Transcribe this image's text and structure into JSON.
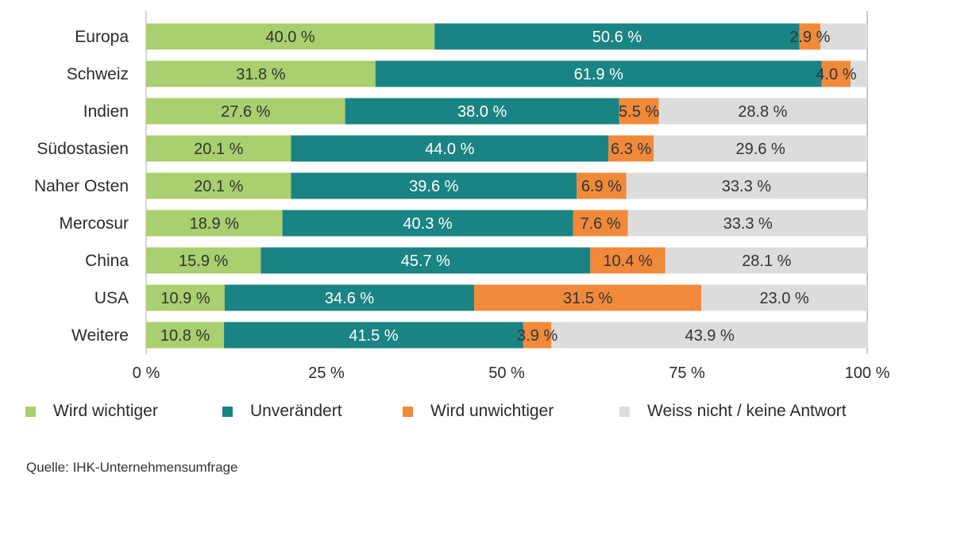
{
  "chart_data": {
    "type": "bar",
    "orientation": "horizontal",
    "stacked": true,
    "categories": [
      "Europa",
      "Schweiz",
      "Indien",
      "Südostasien",
      "Naher Osten",
      "Mercosur",
      "China",
      "USA",
      "Weitere"
    ],
    "series": [
      {
        "name": "Wird wichtiger",
        "color": "#a9cf6e",
        "text_color": "#333333",
        "values": [
          40.0,
          31.8,
          27.6,
          20.1,
          20.1,
          18.9,
          15.9,
          10.9,
          10.8
        ],
        "labels": [
          "40.0 %",
          "31.8 %",
          "27.6 %",
          "20.1 %",
          "20.1 %",
          "18.9 %",
          "15.9 %",
          "10.9 %",
          "10.8 %"
        ]
      },
      {
        "name": "Unverändert",
        "color": "#1a8383",
        "text_color": "#ffffff",
        "values": [
          50.6,
          61.9,
          38.0,
          44.0,
          39.6,
          40.3,
          45.7,
          34.6,
          41.5
        ],
        "labels": [
          "50.6 %",
          "61.9 %",
          "38.0 %",
          "44.0 %",
          "39.6 %",
          "40.3 %",
          "45.7  %",
          "34.6 %",
          "41.5 %"
        ]
      },
      {
        "name": "Wird unwichtiger",
        "color": "#f08a3a",
        "text_color": "#333333",
        "values": [
          2.9,
          4.0,
          5.5,
          6.3,
          6.9,
          7.6,
          10.4,
          31.5,
          3.9
        ],
        "labels": [
          "2.9 %",
          "4.0 %",
          "5.5 %",
          "6.3 %",
          "6.9 %",
          "7.6 %",
          "10.4 %",
          "31.5 %",
          "3.9 %"
        ]
      },
      {
        "name": "Weiss nicht / keine Antwort",
        "color": "#dcdcdc",
        "text_color": "#333333",
        "values": [
          6.5,
          2.3,
          28.8,
          29.6,
          33.3,
          33.3,
          28.1,
          23.0,
          43.9
        ],
        "labels": [
          null,
          null,
          "28.8 %",
          "29.6 %",
          "33.3 %",
          "33.3 %",
          "28.1 %",
          "23.0 %",
          "43.9 %"
        ]
      }
    ],
    "xlim": [
      0,
      100
    ],
    "xticks": [
      0,
      25,
      50,
      75,
      100
    ],
    "xtick_labels": [
      "0 %",
      "25 %",
      "50 %",
      "75 %",
      "100 %"
    ],
    "legend_labels": [
      "Wird wichtiger",
      "Unverändert",
      "Wird unwichtiger",
      "Weiss nicht / keine Antwort"
    ],
    "legend_position": "bottom",
    "grid": false
  },
  "source": "Quelle: IHK-Unternehmensumfrage"
}
